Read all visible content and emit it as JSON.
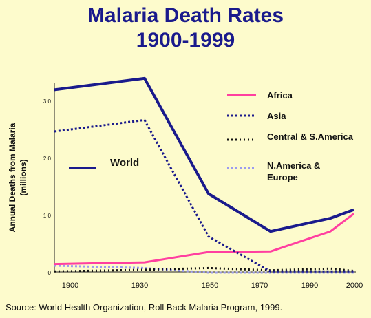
{
  "chart_data": {
    "type": "line",
    "title": "Malaria Death Rates",
    "subtitle": "1900-1999",
    "ylabel_line1": "Annual Deaths from Malaria",
    "ylabel_line2": "(millions)",
    "xlabel": "",
    "x_ticks": [
      "1900",
      "1930",
      "1950",
      "1970",
      "1990",
      "2000"
    ],
    "y_ticks": [
      {
        "label": "3.0",
        "value": 3.0
      },
      {
        "label": "2.0",
        "value": 2.0
      },
      {
        "label": "1.0",
        "value": 1.0
      },
      {
        "label": "0",
        "value": 0.0
      }
    ],
    "ylim": [
      0,
      3.4
    ],
    "grid": false,
    "legend_placement": "right",
    "source": "Source: World Health Organization, Roll Back Malaria Program, 1999.",
    "series": [
      {
        "name": "World",
        "color": "#1a1a8c",
        "style": "solid-thick",
        "x": [
          "1900",
          "1930",
          "1950",
          "1970",
          "1990",
          "2000"
        ],
        "values": [
          3.2,
          3.4,
          1.38,
          0.72,
          0.95,
          1.1
        ]
      },
      {
        "name": "Africa",
        "color": "#ff3fa0",
        "style": "solid",
        "x": [
          "1900",
          "1930",
          "1950",
          "1970",
          "1990",
          "2000"
        ],
        "values": [
          0.15,
          0.18,
          0.36,
          0.37,
          0.72,
          1.03
        ]
      },
      {
        "name": "Asia",
        "color": "#1a1a8c",
        "style": "dashed",
        "x": [
          "1900",
          "1930",
          "1950",
          "1970",
          "1990",
          "2000"
        ],
        "values": [
          2.47,
          2.67,
          0.63,
          0.02,
          0.02,
          0.02
        ]
      },
      {
        "name": "Central & S.America",
        "color": "#111111",
        "style": "dotted",
        "x": [
          "1900",
          "1930",
          "1950",
          "1970",
          "1990",
          "2000"
        ],
        "values": [
          0.02,
          0.05,
          0.08,
          0.04,
          0.07,
          0.03
        ]
      },
      {
        "name": "N.America & Europe",
        "color": "#9b9bf0",
        "style": "dotted-light",
        "x": [
          "1900",
          "1930",
          "1950",
          "1970",
          "1990",
          "2000"
        ],
        "values": [
          0.12,
          0.08,
          0.0,
          0.0,
          0.0,
          0.0
        ]
      }
    ],
    "legend": [
      {
        "label": "Africa",
        "series": "Africa"
      },
      {
        "label": "Asia",
        "series": "Asia"
      },
      {
        "label": "Central & S.America",
        "series": "Central & S.America"
      },
      {
        "label": "N.America &",
        "label2": "Europe",
        "series": "N.America & Europe"
      },
      {
        "label": "World",
        "series": "World"
      }
    ]
  }
}
